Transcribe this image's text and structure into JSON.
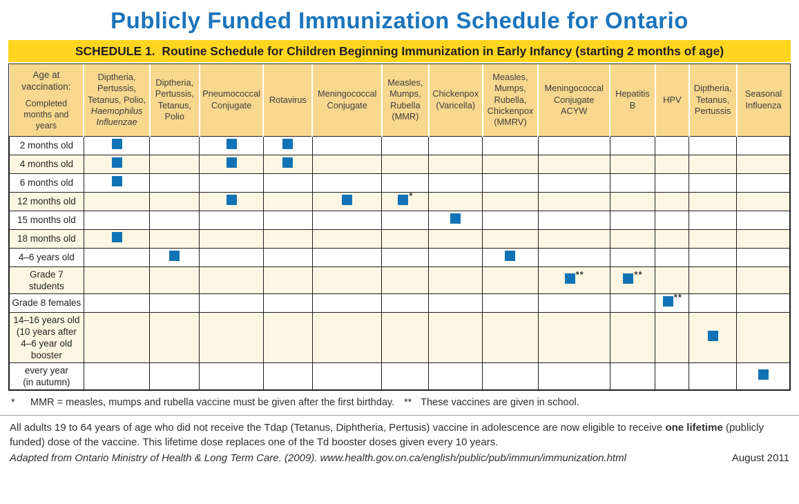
{
  "title": "Publicly Funded Immunization Schedule for Ontario",
  "banner": "SCHEDULE 1.  Routine Schedule for Children Beginning Immunization in Early Infancy (starting 2 months of age)",
  "colors": {
    "title_blue": "#1B74BB",
    "banner_yellow": "#FFD520",
    "header_tan": "#F8D88E",
    "row_cream": "#FDF6E2",
    "dose_blue": "#1173B5"
  },
  "table": {
    "age_header": {
      "line1": "Age at\nvaccination:",
      "line2": "Completed\nmonths and\nyears"
    },
    "vaccines": [
      {
        "label": "Diptheria,\nPertussis,\nTetanus, Polio,",
        "italic": "Haemophilus\nInfluenzae"
      },
      {
        "label": "Diptheria,\nPertussis,\nTetanus,\nPolio"
      },
      {
        "label": "Pneumococcal\nConjugate"
      },
      {
        "label": "Rotavirus"
      },
      {
        "label": "Meningococcal\nConjugate"
      },
      {
        "label": "Measles,\nMumps,\nRubella\n(MMR)"
      },
      {
        "label": "Chickenpox\n(Varicella)"
      },
      {
        "label": "Measles,\nMumps,\nRubella,\nChickenpox\n(MMRV)"
      },
      {
        "label": "Meningococcal\nConjugate\nACYW"
      },
      {
        "label": "Hepatitis\nB"
      },
      {
        "label": "HPV"
      },
      {
        "label": "Diptheria,\nTetanus,\nPertussis"
      },
      {
        "label": "Seasonal\nInfluenza"
      }
    ],
    "rows": [
      {
        "label": "2 months old",
        "doses": [
          {
            "col": 0,
            "mark": ""
          },
          {
            "col": 2,
            "mark": ""
          },
          {
            "col": 3,
            "mark": ""
          }
        ]
      },
      {
        "label": "4 months old",
        "doses": [
          {
            "col": 0,
            "mark": ""
          },
          {
            "col": 2,
            "mark": ""
          },
          {
            "col": 3,
            "mark": ""
          }
        ]
      },
      {
        "label": "6 months old",
        "doses": [
          {
            "col": 0,
            "mark": ""
          }
        ]
      },
      {
        "label": "12 months old",
        "doses": [
          {
            "col": 2,
            "mark": ""
          },
          {
            "col": 4,
            "mark": ""
          },
          {
            "col": 5,
            "mark": "*"
          }
        ]
      },
      {
        "label": "15 months old",
        "doses": [
          {
            "col": 6,
            "mark": ""
          }
        ]
      },
      {
        "label": "18 months old",
        "doses": [
          {
            "col": 0,
            "mark": ""
          }
        ]
      },
      {
        "label": "4–6 years old",
        "doses": [
          {
            "col": 1,
            "mark": ""
          },
          {
            "col": 7,
            "mark": ""
          }
        ]
      },
      {
        "label": "Grade 7\nstudents",
        "doses": [
          {
            "col": 8,
            "mark": "**"
          },
          {
            "col": 9,
            "mark": "**"
          }
        ]
      },
      {
        "label": "Grade 8 females",
        "doses": [
          {
            "col": 10,
            "mark": "**"
          }
        ]
      },
      {
        "label": "14–16 years old\n(10 years after\n4–6 year old\nbooster",
        "doses": [
          {
            "col": 11,
            "mark": ""
          }
        ]
      },
      {
        "label": "every year\n(in autumn)",
        "doses": [
          {
            "col": 12,
            "mark": ""
          }
        ]
      }
    ]
  },
  "footnotes": {
    "single": {
      "marker": "*",
      "text": "MMR = measles, mumps and rubella vaccine must be given after the first birthday."
    },
    "double": {
      "marker": "**",
      "text": "These vaccines are given in school."
    }
  },
  "adult_note": {
    "before": "All adults 19 to 64 years of age who did not receive the Tdap (Tetanus, Diphtheria, Pertusis) vaccine in adolescence are now eligible to receive ",
    "bold": "one lifetime",
    "after": " (publicly funded) dose of the vaccine. This lifetime dose replaces one of the Td booster doses given every 10 years."
  },
  "source": "Adapted from Ontario Ministry of Health & Long Term Care. (2009). www.health.gov.on.ca/english/public/pub/immun/immunization.html",
  "date": "August 2011"
}
